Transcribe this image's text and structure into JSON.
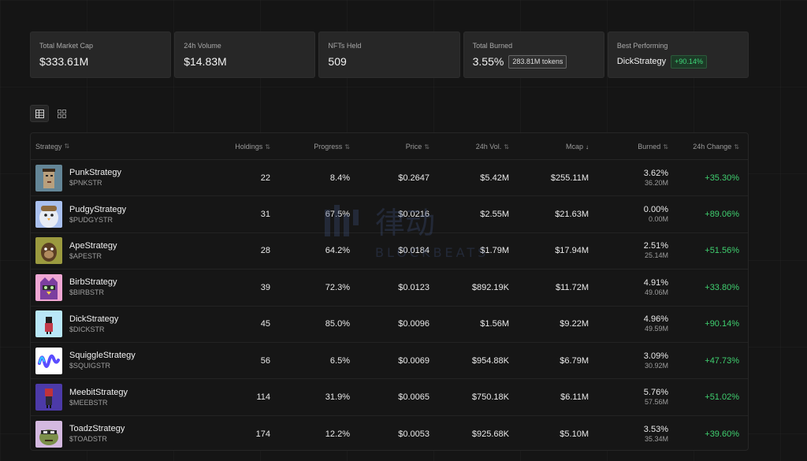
{
  "stats": [
    {
      "label": "Total Market Cap",
      "value": "$333.61M"
    },
    {
      "label": "24h Volume",
      "value": "$14.83M"
    },
    {
      "label": "NFTs Held",
      "value": "509"
    },
    {
      "label": "Total Burned",
      "value": "3.55%",
      "badge": "283.81M tokens"
    },
    {
      "label": "Best Performing",
      "value": "DickStrategy",
      "badge": "+90.14%"
    }
  ],
  "view_toggle": {
    "active": "table-view",
    "icons": [
      "table-icon",
      "grid-icon"
    ]
  },
  "table": {
    "headers": {
      "strategy": "Strategy",
      "holdings": "Holdings",
      "progress": "Progress",
      "price": "Price",
      "volume": "24h Vol.",
      "mcap": "Mcap",
      "burned": "Burned",
      "change": "24h Change"
    },
    "rows": [
      {
        "name": "PunkStrategy",
        "ticker": "$PNKSTR",
        "holdings": "22",
        "progress": "8.4%",
        "price": "$0.2647",
        "volume": "$5.42M",
        "mcap": "$255.11M",
        "burned_pct": "3.62%",
        "burned_amt": "36.20M",
        "change": "+35.30%",
        "avatar": "punk"
      },
      {
        "name": "PudgyStrategy",
        "ticker": "$PUDGYSTR",
        "holdings": "31",
        "progress": "67.5%",
        "price": "$0.0216",
        "volume": "$2.55M",
        "mcap": "$21.63M",
        "burned_pct": "0.00%",
        "burned_amt": "0.00M",
        "change": "+89.06%",
        "avatar": "pudgy"
      },
      {
        "name": "ApeStrategy",
        "ticker": "$APESTR",
        "holdings": "28",
        "progress": "64.2%",
        "price": "$0.0184",
        "volume": "$1.79M",
        "mcap": "$17.94M",
        "burned_pct": "2.51%",
        "burned_amt": "25.14M",
        "change": "+51.56%",
        "avatar": "ape"
      },
      {
        "name": "BirbStrategy",
        "ticker": "$BIRBSTR",
        "holdings": "39",
        "progress": "72.3%",
        "price": "$0.0123",
        "volume": "$892.19K",
        "mcap": "$11.72M",
        "burned_pct": "4.91%",
        "burned_amt": "49.06M",
        "change": "+33.80%",
        "avatar": "birb"
      },
      {
        "name": "DickStrategy",
        "ticker": "$DICKSTR",
        "holdings": "45",
        "progress": "85.0%",
        "price": "$0.0096",
        "volume": "$1.56M",
        "mcap": "$9.22M",
        "burned_pct": "4.96%",
        "burned_amt": "49.59M",
        "change": "+90.14%",
        "avatar": "dick"
      },
      {
        "name": "SquiggleStrategy",
        "ticker": "$SQUIGSTR",
        "holdings": "56",
        "progress": "6.5%",
        "price": "$0.0069",
        "volume": "$954.88K",
        "mcap": "$6.79M",
        "burned_pct": "3.09%",
        "burned_amt": "30.92M",
        "change": "+47.73%",
        "avatar": "squiggle"
      },
      {
        "name": "MeebitStrategy",
        "ticker": "$MEEBSTR",
        "holdings": "114",
        "progress": "31.9%",
        "price": "$0.0065",
        "volume": "$750.18K",
        "mcap": "$6.11M",
        "burned_pct": "5.76%",
        "burned_amt": "57.56M",
        "change": "+51.02%",
        "avatar": "meebit"
      },
      {
        "name": "ToadzStrategy",
        "ticker": "$TOADSTR",
        "holdings": "174",
        "progress": "12.2%",
        "price": "$0.0053",
        "volume": "$925.68K",
        "mcap": "$5.10M",
        "burned_pct": "3.53%",
        "burned_amt": "35.34M",
        "change": "+39.60%",
        "avatar": "toadz"
      }
    ]
  },
  "watermark": {
    "text": "BLOCKBEATS",
    "cjk": "律动"
  },
  "colors": {
    "background": "#151515",
    "card": "#272727",
    "positive": "#3fcf6f"
  }
}
